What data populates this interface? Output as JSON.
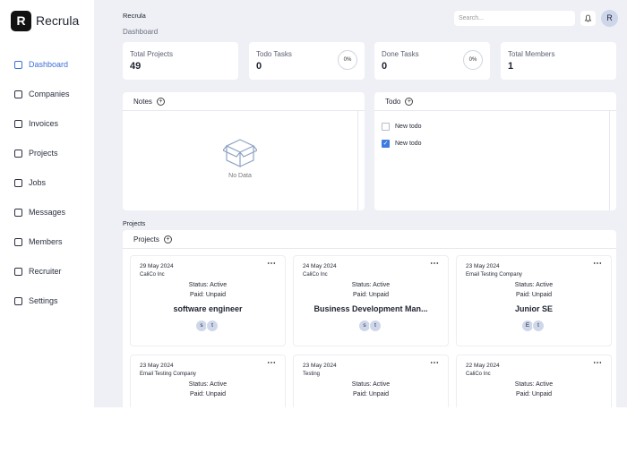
{
  "sidebar": {
    "brand": "Recrula",
    "nav": [
      "Dashboard",
      "Companies",
      "Invoices",
      "Projects",
      "Jobs",
      "Messages",
      "Members",
      "Recruiter",
      "Settings"
    ],
    "active": 0
  },
  "header": {
    "breadcrumb": "Recrula",
    "page": "Dashboard",
    "search_placeholder": "Search...",
    "avatar": "R"
  },
  "stats": [
    {
      "label": "Total Projects",
      "value": 49
    },
    {
      "label": "Todo Tasks",
      "value": 0,
      "progress": "0%"
    },
    {
      "label": "Done Tasks",
      "value": 0,
      "progress": "0%"
    },
    {
      "label": "Total Members",
      "value": 1
    }
  ],
  "notes": {
    "title": "Notes",
    "empty": "No Data"
  },
  "todo": {
    "title": "Todo",
    "items": [
      {
        "text": "New todo",
        "done": false
      },
      {
        "text": "New todo",
        "done": true
      }
    ]
  },
  "projects": {
    "section": "Projects",
    "title": "Projects",
    "cards": [
      {
        "date": "29 May 2024",
        "company": "CaliCo Inc",
        "status": "Status: Active",
        "paid": "Paid: Unpaid",
        "title": "software engineer",
        "members": [
          "s",
          "t"
        ]
      },
      {
        "date": "24 May 2024",
        "company": "CaliCo Inc",
        "status": "Status: Active",
        "paid": "Paid: Unpaid",
        "title": "Business Development Man...",
        "members": [
          "s",
          "t"
        ]
      },
      {
        "date": "23 May 2024",
        "company": "Email Testing Company",
        "status": "Status: Active",
        "paid": "Paid: Unpaid",
        "title": "Junior SE",
        "members": [
          "E",
          "t"
        ]
      },
      {
        "date": "23 May 2024",
        "company": "Email Testing Company",
        "status": "Status: Active",
        "paid": "Paid: Unpaid"
      },
      {
        "date": "23 May 2024",
        "company": "Testing",
        "status": "Status: Active",
        "paid": "Paid: Unpaid"
      },
      {
        "date": "22 May 2024",
        "company": "CaliCo Inc",
        "status": "Status: Active",
        "paid": "Paid: Unpaid"
      }
    ]
  }
}
